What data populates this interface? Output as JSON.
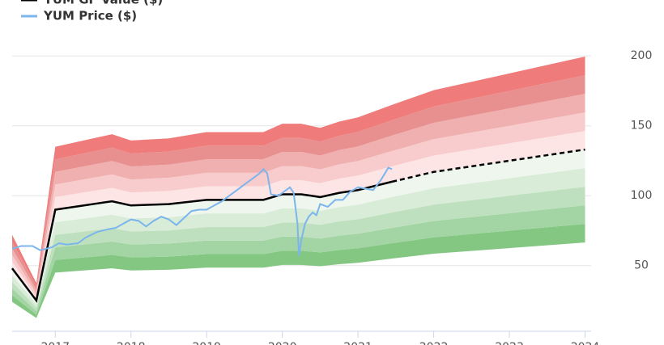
{
  "chart_data": {
    "type": "band-line",
    "xlim": [
      2016.43,
      2024.08
    ],
    "xticks": [
      2017,
      2018,
      2019,
      2020,
      2021,
      2022,
      2023,
      2024
    ],
    "ylim": [
      3,
      210
    ],
    "yticks": [
      50,
      100,
      150,
      200
    ],
    "grid": true,
    "bands": {
      "multipliers": [
        0.5,
        0.6,
        0.7,
        0.8,
        0.9,
        1.0,
        1.1,
        1.2,
        1.3,
        1.4,
        1.5
      ],
      "colors": [
        "#83c783",
        "#a3d4a3",
        "#bfe0bf",
        "#d8ecd8",
        "#eef6ee",
        "#fde5e5",
        "#f8cccc",
        "#f0b0b0",
        "#e89090",
        "#f07b7b"
      ]
    },
    "series": [
      {
        "name": "YUM GF Value ($)",
        "color": "#000000",
        "x": [
          2016.43,
          2016.75,
          2017.0,
          2017.5,
          2017.75,
          2018.0,
          2018.5,
          2019.0,
          2019.75,
          2020.0,
          2020.25,
          2020.5,
          2020.75,
          2021.0,
          2021.45,
          2022.0,
          2023.0,
          2024.0
        ],
        "values": [
          48,
          25,
          90,
          94,
          96,
          93,
          94,
          97,
          97,
          101,
          101,
          99,
          102,
          104,
          110,
          117,
          125,
          133
        ]
      },
      {
        "name": "YUM Price ($)",
        "color": "#7cb5ec",
        "x": [
          2016.43,
          2016.55,
          2016.7,
          2016.8,
          2016.95,
          2017.05,
          2017.15,
          2017.3,
          2017.4,
          2017.55,
          2017.7,
          2017.8,
          2017.9,
          2018.0,
          2018.1,
          2018.2,
          2018.3,
          2018.4,
          2018.5,
          2018.6,
          2018.7,
          2018.8,
          2018.9,
          2019.0,
          2019.1,
          2019.2,
          2019.3,
          2019.4,
          2019.5,
          2019.6,
          2019.7,
          2019.75,
          2019.8,
          2019.85,
          2019.95,
          2020.05,
          2020.1,
          2020.15,
          2020.2,
          2020.22,
          2020.25,
          2020.3,
          2020.35,
          2020.4,
          2020.45,
          2020.5,
          2020.6,
          2020.7,
          2020.8,
          2020.9,
          2021.0,
          2021.1,
          2021.2,
          2021.3,
          2021.4,
          2021.45
        ],
        "values": [
          62,
          64,
          64,
          61,
          63,
          66,
          65,
          66,
          70,
          74,
          76,
          77,
          80,
          83,
          82,
          78,
          82,
          85,
          83,
          79,
          84,
          89,
          90,
          90,
          93,
          96,
          100,
          104,
          108,
          112,
          116,
          119,
          116,
          101,
          100,
          104,
          106,
          102,
          80,
          57,
          68,
          80,
          85,
          88,
          86,
          94,
          92,
          97,
          97,
          103,
          106,
          105,
          104,
          111,
          120,
          119
        ]
      }
    ]
  }
}
